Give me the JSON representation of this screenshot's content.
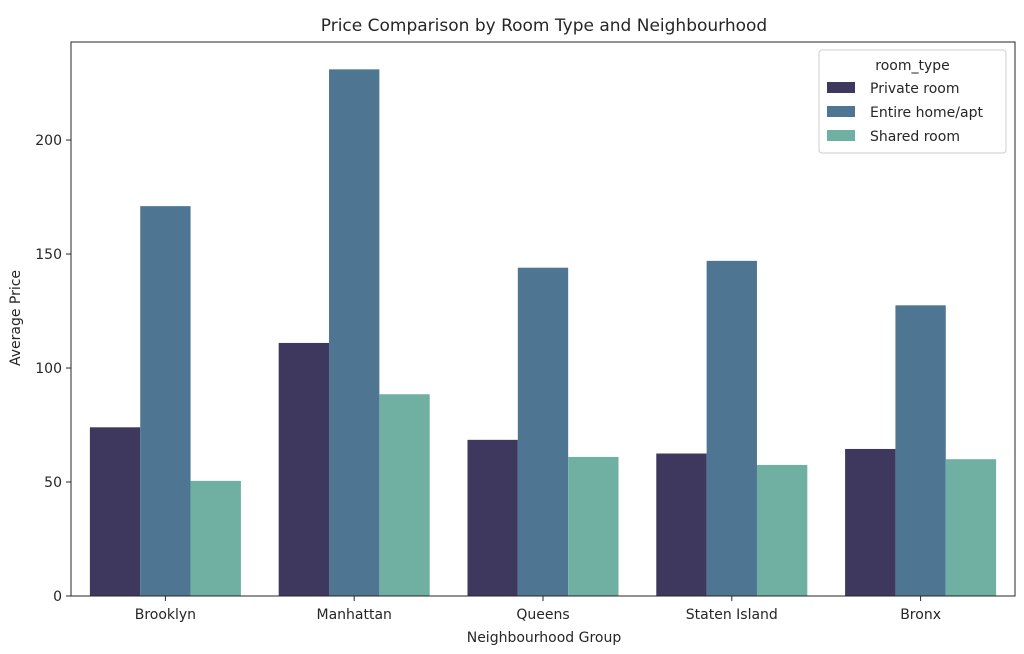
{
  "chart_data": {
    "type": "bar",
    "title": "Price Comparison by Room Type and Neighbourhood",
    "xlabel": "Neighbourhood Group",
    "ylabel": "Average Price",
    "categories": [
      "Brooklyn",
      "Manhattan",
      "Queens",
      "Staten Island",
      "Bronx"
    ],
    "series": [
      {
        "name": "Private room",
        "values": [
          74,
          111,
          68.5,
          62.5,
          64.5
        ],
        "color": "#3f385e"
      },
      {
        "name": "Entire home/apt",
        "values": [
          171,
          231,
          144,
          147,
          127.5
        ],
        "color": "#4e7693"
      },
      {
        "name": "Shared room",
        "values": [
          50.5,
          88.5,
          61,
          57.5,
          60
        ],
        "color": "#6fb0a2"
      }
    ],
    "ylim": [
      0,
      243
    ],
    "yticks": [
      0,
      50,
      100,
      150,
      200
    ],
    "legend": {
      "title": "room_type",
      "placement": "top-right"
    },
    "grid": false
  }
}
